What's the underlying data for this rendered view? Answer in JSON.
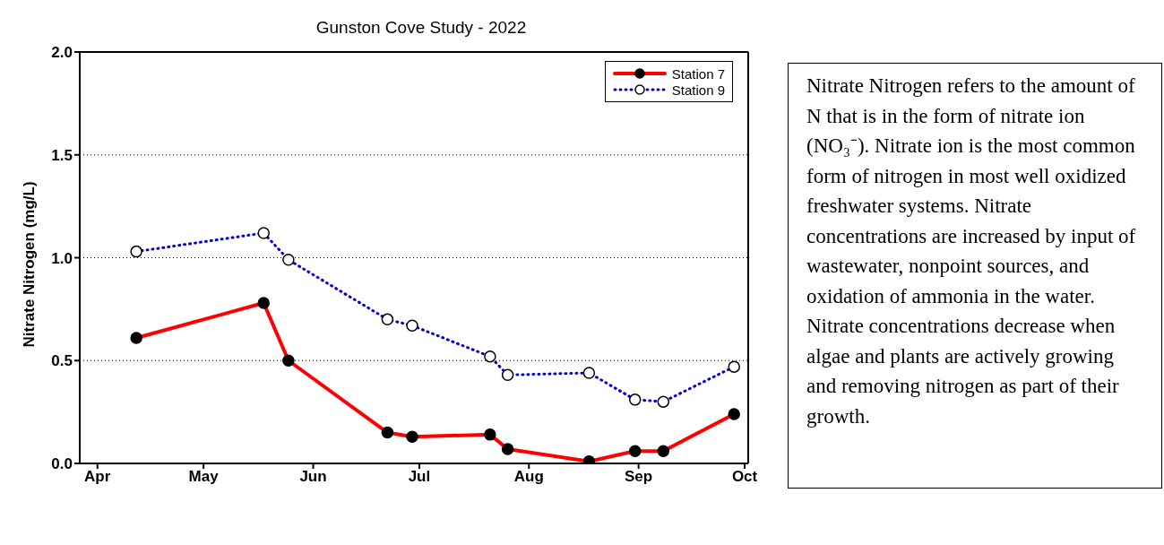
{
  "chart_data": {
    "type": "line",
    "title": "Gunston Cove Study - 2022",
    "ylabel": "Nitrate Nitrogen (mg/L)",
    "x": [
      "2022-04-12",
      "2022-05-18",
      "2022-05-25",
      "2022-06-22",
      "2022-06-29",
      "2022-07-21",
      "2022-07-26",
      "2022-08-18",
      "2022-08-31",
      "2022-09-08",
      "2022-09-28"
    ],
    "series": [
      {
        "name": "Station 7",
        "color": "#ff0000",
        "line_style": "solid",
        "values": [
          0.61,
          0.78,
          0.5,
          0.15,
          0.13,
          0.14,
          0.07,
          0.01,
          0.06,
          0.06,
          0.24
        ]
      },
      {
        "name": "Station 9",
        "color": "#0000cc",
        "line_style": "dotted",
        "values": [
          1.03,
          1.12,
          0.99,
          0.7,
          0.67,
          0.52,
          0.43,
          0.44,
          0.31,
          0.3,
          0.47
        ]
      }
    ],
    "xlim": [
      "2022-03-27",
      "2022-10-02"
    ],
    "xticks": [
      {
        "value": "2022-04-01",
        "label": "Apr"
      },
      {
        "value": "2022-05-01",
        "label": "May"
      },
      {
        "value": "2022-06-01",
        "label": "Jun"
      },
      {
        "value": "2022-07-01",
        "label": "Jul"
      },
      {
        "value": "2022-08-01",
        "label": "Aug"
      },
      {
        "value": "2022-09-01",
        "label": "Sep"
      },
      {
        "value": "2022-10-01",
        "label": "Oct"
      }
    ],
    "ylim": [
      0,
      2
    ],
    "yticks": [
      {
        "value": 0,
        "label": "0.0"
      },
      {
        "value": 0.5,
        "label": "0.5"
      },
      {
        "value": 1,
        "label": "1.0"
      },
      {
        "value": 1.5,
        "label": "1.5"
      },
      {
        "value": 2,
        "label": "2.0"
      }
    ],
    "grid": "y",
    "legend": "top right",
    "marker": "circle",
    "annotations": [
      "Nitrate Nitrogen refers to the amount of N that is in the form of nitrate ion (NO₃⁻).  Nitrate ion is the most common form of nitrogen in most well oxidized freshwater systems. Nitrate concentrations are increased by input of wastewater, nonpoint sources, and oxidation of ammonia in the water. Nitrate concentrations decrease when algae and plants are actively growing and removing nitrogen as part of their growth."
    ]
  }
}
